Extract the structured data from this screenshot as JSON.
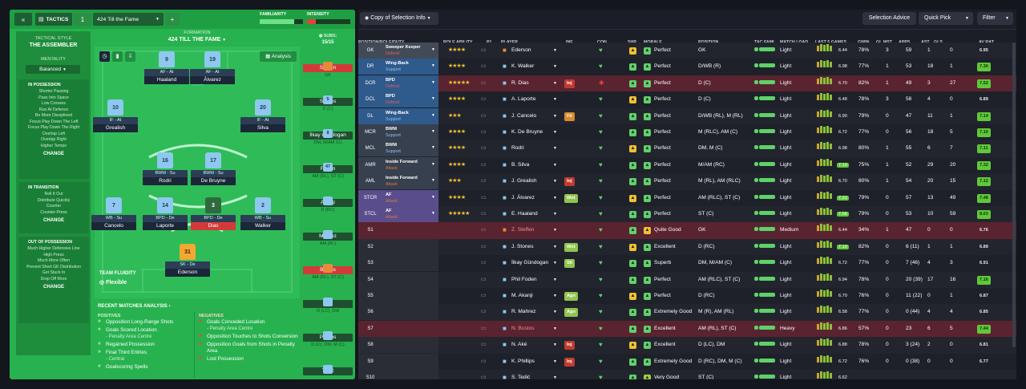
{
  "header": {
    "tactics_label": "TACTICS",
    "slot": "1",
    "tactic_name": "424 Till the Fame",
    "add": "+",
    "familiarity_label": "FAMILIARITY",
    "intensity_label": "INTENSITY"
  },
  "sidebar": {
    "style_label": "TACTICAL STYLE",
    "style": "THE ASSEMBLER",
    "mentality_label": "MENTALITY",
    "mentality": "Balanced",
    "possession": {
      "title": "IN POSSESSION",
      "items": [
        "Shorter Passing",
        "Pass Into Space",
        "Low Crosses",
        "Run At Defence",
        "Be More Disciplined",
        "Focus Play Down The Left",
        "Focus Play Down The Right",
        "Overlap Left",
        "Overlap Right",
        "Higher Tempo"
      ]
    },
    "transition": {
      "title": "IN TRANSITION",
      "items": [
        "Roll It Out",
        "Distribute Quickly",
        "Counter",
        "Counter-Press"
      ]
    },
    "out": {
      "title": "OUT OF POSSESSION",
      "items": [
        "Much Higher Defensive Line",
        "High Press",
        "Much More Often",
        "Prevent Short GK Distribution",
        "Get Stuck In",
        "Drop Off More"
      ]
    },
    "change": "CHANGE"
  },
  "formation": {
    "label": "FORMATION",
    "name": "424 TILL THE FAME",
    "analysis": "Analysis",
    "subs_label": "SUBS:",
    "subs_count": "15/15",
    "fluidity_label": "TEAM FLUIDITY",
    "fluidity": "Flexible"
  },
  "pitch": [
    {
      "num": "9",
      "role": "AF - At",
      "name": "Haaland"
    },
    {
      "num": "19",
      "role": "AF - At",
      "name": "Álvarez"
    },
    {
      "num": "10",
      "role": "IF - At",
      "name": "Grealish"
    },
    {
      "num": "20",
      "role": "IF - At",
      "name": "Silva"
    },
    {
      "num": "16",
      "role": "BWM - Su",
      "name": "Rodri"
    },
    {
      "num": "17",
      "role": "BWM - Su",
      "name": "De Bruyne"
    },
    {
      "num": "7",
      "role": "WB - Su",
      "name": "Cancelo"
    },
    {
      "num": "14",
      "role": "BPD - De",
      "name": "Laporte"
    },
    {
      "num": "3",
      "role": "BPD - De",
      "name": "Dias"
    },
    {
      "num": "2",
      "role": "WB - Su",
      "name": "Walker"
    },
    {
      "num": "31",
      "role": "SK - De",
      "name": "Ederson"
    }
  ],
  "subs": [
    {
      "num": "",
      "name": "Steffen",
      "pos": "GK"
    },
    {
      "num": "5",
      "name": "Stones",
      "pos": "D (C)"
    },
    {
      "num": "8",
      "name": "İlkay Gündogan",
      "pos": "DM, M/AM (C)"
    },
    {
      "num": "47",
      "name": "Foden",
      "pos": "AM (RL), ST (C)"
    },
    {
      "num": "",
      "name": "Akanji",
      "pos": "D (RC)"
    },
    {
      "num": "",
      "name": "Mahrez",
      "pos": "AM (RL)"
    },
    {
      "num": "",
      "name": "Bustos",
      "pos": "AM (RL), ST (C)"
    },
    {
      "num": "",
      "name": "Aké",
      "pos": "D (LC), DM"
    },
    {
      "num": "",
      "name": "Phillips",
      "pos": "D (C), DM, M (C)"
    },
    {
      "num": "",
      "name": "Tedić",
      "pos": ""
    }
  ],
  "analysis": {
    "title": "RECENT MATCHES ANALYSIS",
    "positives_label": "POSITIVES",
    "negatives_label": "NEGATIVES",
    "positives": [
      {
        "t": "Opposition Long-Range Shots",
        "s": ""
      },
      {
        "t": "Goals Scored Location",
        "s": "- Penalty Area Centre"
      },
      {
        "t": "Regained Possession",
        "s": ""
      },
      {
        "t": "Final Third Entries",
        "s": "- Central"
      },
      {
        "t": "Goalscoring Spells",
        "s": ""
      }
    ],
    "negatives": [
      {
        "t": "Goals Conceded Location",
        "s": "- Penalty Area Centre"
      },
      {
        "t": "Opposition Touches to Shots Conversion",
        "s": ""
      },
      {
        "t": "Opposition Goals from Shots in Penalty Area",
        "s": ""
      },
      {
        "t": "Lost Possession",
        "s": ""
      }
    ]
  },
  "toolbar": {
    "view": "Copy of Selection Info",
    "advice": "Selection Advice",
    "quickpick": "Quick Pick",
    "filter": "Filter"
  },
  "columns": [
    "POSITION/ROLE/DUTY",
    "ROLE ABILITY",
    "P1",
    "PLAYER",
    "INF",
    "CON",
    "SHP",
    "MORALE",
    "POSITION",
    "TAC FAMI",
    "MATCH LOAD",
    "LAST 5 GAMES",
    "GWIN",
    "GL MST",
    "APPS",
    "AST",
    "GLS",
    "AV RAT"
  ],
  "rows": [
    {
      "pos": "GK",
      "role": "Sweeper Keeper",
      "duty": "Defend",
      "stars": "★★★★",
      "player": "Ederson",
      "inf": "",
      "morale": "Perfect",
      "position": "GK",
      "load": "Light",
      "form": "6.44",
      "gwin": "78%",
      "glmst": "3",
      "apps": "59",
      "ast": "1",
      "gls": "0",
      "rat": "6.95"
    },
    {
      "pos": "DR",
      "role": "Wing-Back",
      "duty": "Support",
      "stars": "★★★★",
      "player": "K. Walker",
      "inf": "",
      "morale": "Perfect",
      "position": "D/WB (R)",
      "load": "Light",
      "form": "6.98",
      "gwin": "77%",
      "glmst": "1",
      "apps": "53",
      "ast": "18",
      "gls": "1",
      "rat": "7.30"
    },
    {
      "pos": "DCR",
      "role": "BPD",
      "duty": "Defend",
      "stars": "★★★★★",
      "player": "R. Dias",
      "inf": "Inj",
      "morale": "Perfect",
      "position": "D (C)",
      "load": "Light",
      "form": "6.70",
      "gwin": "82%",
      "glmst": "1",
      "apps": "49",
      "ast": "3",
      "gls": "27",
      "rat": "7.52"
    },
    {
      "pos": "DCL",
      "role": "BPD",
      "duty": "Defend",
      "stars": "★★★★",
      "player": "A. Laporte",
      "inf": "",
      "morale": "Perfect",
      "position": "D (C)",
      "load": "Light",
      "form": "6.48",
      "gwin": "78%",
      "glmst": "3",
      "apps": "58",
      "ast": "4",
      "gls": "0",
      "rat": "6.89"
    },
    {
      "pos": "DL",
      "role": "Wing-Back",
      "duty": "Support",
      "stars": "★★★",
      "player": "J. Cancelo",
      "inf": "Fit",
      "morale": "Perfect",
      "position": "D/WB (RL), M (RL)",
      "load": "Light",
      "form": "6.90",
      "gwin": "79%",
      "glmst": "0",
      "apps": "47",
      "ast": "11",
      "gls": "1",
      "rat": "7.14"
    },
    {
      "pos": "MCR",
      "role": "BWM",
      "duty": "Support",
      "stars": "★★★★",
      "player": "K. De Bruyne",
      "inf": "",
      "morale": "Perfect",
      "position": "M (RLC), AM (C)",
      "load": "Light",
      "form": "6.72",
      "gwin": "77%",
      "glmst": "0",
      "apps": "56",
      "ast": "18",
      "gls": "5",
      "rat": "7.10"
    },
    {
      "pos": "MCL",
      "role": "BWM",
      "duty": "Support",
      "stars": "★★★★",
      "player": "Rodri",
      "inf": "",
      "morale": "Perfect",
      "position": "DM, M (C)",
      "load": "Light",
      "form": "6.98",
      "gwin": "80%",
      "glmst": "1",
      "apps": "55",
      "ast": "6",
      "gls": "7",
      "rat": "7.11"
    },
    {
      "pos": "AMR",
      "role": "Inside Forward",
      "duty": "Attack",
      "stars": "★★★★",
      "player": "B. Silva",
      "inf": "",
      "morale": "Perfect",
      "position": "M/AM (RC)",
      "load": "Light",
      "form": "7.10",
      "gwin": "75%",
      "glmst": "1",
      "apps": "52",
      "ast": "29",
      "gls": "20",
      "rat": "7.32"
    },
    {
      "pos": "AML",
      "role": "Inside Forward",
      "duty": "Attack",
      "stars": "★★★",
      "player": "J. Grealish",
      "inf": "Inj",
      "morale": "Perfect",
      "position": "M (RL), AM (RLC)",
      "load": "Light",
      "form": "6.70",
      "gwin": "80%",
      "glmst": "1",
      "apps": "54",
      "ast": "20",
      "gls": "15",
      "rat": "7.12"
    },
    {
      "pos": "STCR",
      "role": "AF",
      "duty": "Attack",
      "stars": "★★★★",
      "player": "J. Álvarez",
      "inf": "Wnt",
      "morale": "Perfect",
      "position": "AM (RLC), ST (C)",
      "load": "Light",
      "form": "7.22",
      "gwin": "79%",
      "glmst": "0",
      "apps": "57",
      "ast": "13",
      "gls": "49",
      "rat": "7.48"
    },
    {
      "pos": "STCL",
      "role": "AF",
      "duty": "Attack",
      "stars": "★★★★★",
      "player": "E. Haaland",
      "inf": "",
      "morale": "Perfect",
      "position": "ST (C)",
      "load": "Light",
      "form": "7.56",
      "gwin": "79%",
      "glmst": "0",
      "apps": "53",
      "ast": "10",
      "gls": "59",
      "rat": "8.03"
    },
    {
      "pos": "S1",
      "role": "",
      "duty": "",
      "stars": "",
      "player": "Z. Steffen",
      "inf": "",
      "morale": "Quite Good",
      "position": "GK",
      "load": "Medium",
      "form": "6.44",
      "gwin": "34%",
      "glmst": "1",
      "apps": "47",
      "ast": "0",
      "gls": "0",
      "rat": "6.76"
    },
    {
      "pos": "S2",
      "role": "",
      "duty": "",
      "stars": "",
      "player": "J. Stones",
      "inf": "Wnt",
      "morale": "Excellent",
      "position": "D (RC)",
      "load": "Light",
      "form": "7.10",
      "gwin": "82%",
      "glmst": "0",
      "apps": "6 (11)",
      "ast": "1",
      "gls": "1",
      "rat": "6.89"
    },
    {
      "pos": "S3",
      "role": "",
      "duty": "",
      "stars": "",
      "player": "İlkay Gündogan",
      "inf": "Slt",
      "morale": "Superb",
      "position": "DM, M/AM (C)",
      "load": "Light",
      "form": "6.72",
      "gwin": "77%",
      "glmst": "0",
      "apps": "7 (46)",
      "ast": "4",
      "gls": "3",
      "rat": "6.91"
    },
    {
      "pos": "S4",
      "role": "",
      "duty": "",
      "stars": "",
      "player": "Phil Foden",
      "inf": "",
      "morale": "Perfect",
      "position": "AM (RLC), ST (C)",
      "load": "Light",
      "form": "6.94",
      "gwin": "78%",
      "glmst": "0",
      "apps": "20 (39)",
      "ast": "17",
      "gls": "16",
      "rat": "7.16"
    },
    {
      "pos": "S5",
      "role": "",
      "duty": "",
      "stars": "",
      "player": "M. Akanji",
      "inf": "Agn",
      "morale": "Perfect",
      "position": "D (RC)",
      "load": "Light",
      "form": "6.70",
      "gwin": "76%",
      "glmst": "0",
      "apps": "11 (22)",
      "ast": "0",
      "gls": "1",
      "rat": "6.87"
    },
    {
      "pos": "S6",
      "role": "",
      "duty": "",
      "stars": "",
      "player": "R. Mahrez",
      "inf": "Agn",
      "morale": "Extremely Good",
      "position": "M (R), AM (RL)",
      "load": "Light",
      "form": "6.58",
      "gwin": "77%",
      "glmst": "0",
      "apps": "0 (44)",
      "ast": "4",
      "gls": "4",
      "rat": "6.85"
    },
    {
      "pos": "S7",
      "role": "",
      "duty": "",
      "stars": "",
      "player": "N. Bustos",
      "inf": "",
      "morale": "Excellent",
      "position": "AM (RL), ST (C)",
      "load": "Heavy",
      "form": "6.86",
      "gwin": "57%",
      "glmst": "0",
      "apps": "23",
      "ast": "6",
      "gls": "5",
      "rat": "7.44"
    },
    {
      "pos": "S8",
      "role": "",
      "duty": "",
      "stars": "",
      "player": "N. Aké",
      "inf": "Inj",
      "morale": "Excellent",
      "position": "D (LC), DM",
      "load": "Light",
      "form": "6.88",
      "gwin": "78%",
      "glmst": "0",
      "apps": "3 (24)",
      "ast": "2",
      "gls": "0",
      "rat": "6.81"
    },
    {
      "pos": "S9",
      "role": "",
      "duty": "",
      "stars": "",
      "player": "K. Phillips",
      "inf": "Inj",
      "morale": "Extremely Good",
      "position": "D (RC), DM, M (C)",
      "load": "Light",
      "form": "6.72",
      "gwin": "76%",
      "glmst": "0",
      "apps": "0 (38)",
      "ast": "0",
      "gls": "0",
      "rat": "6.77"
    },
    {
      "pos": "S10",
      "role": "",
      "duty": "",
      "stars": "",
      "player": "S. Tedić",
      "inf": "",
      "morale": "Very Good",
      "position": "ST (C)",
      "load": "Light",
      "form": "6.62",
      "gwin": "",
      "glmst": "",
      "apps": "",
      "ast": "",
      "gls": "",
      "rat": ""
    }
  ]
}
